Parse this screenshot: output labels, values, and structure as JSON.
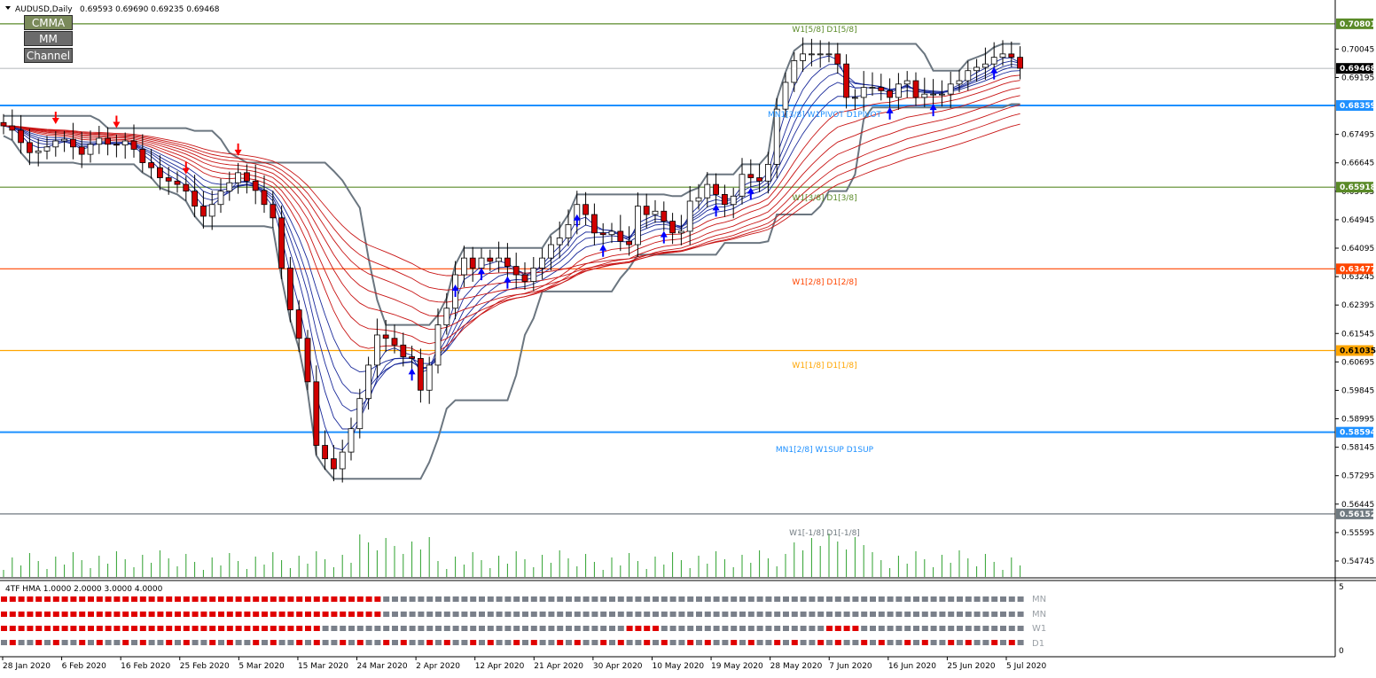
{
  "header": {
    "symbol_label": "AUDUSD,Daily",
    "ohlc": "0.69593 0.69690 0.69235 0.69468"
  },
  "buttons": {
    "cmma": "CMMA",
    "mm": "MM",
    "channel": "Channel"
  },
  "price_axis": {
    "ticks": [
      "0.70045",
      "0.69195",
      "0.67495",
      "0.66645",
      "0.65795",
      "0.64945",
      "0.64095",
      "0.63245",
      "0.62395",
      "0.61545",
      "0.60695",
      "0.59845",
      "0.58995",
      "0.58145",
      "0.57295",
      "0.56445",
      "0.55595",
      "0.54745"
    ],
    "labels": [
      {
        "text": "0.70801",
        "bg": "#5a8a28",
        "fg": "#ffffff"
      },
      {
        "text": "0.69468",
        "bg": "#000000",
        "fg": "#ffffff"
      },
      {
        "text": "0.68359",
        "bg": "#1e90ff",
        "fg": "#ffffff"
      },
      {
        "text": "0.65918",
        "bg": "#5a8a28",
        "fg": "#ffffff"
      },
      {
        "text": "0.63477",
        "bg": "#ff4500",
        "fg": "#ffffff"
      },
      {
        "text": "0.61035",
        "bg": "#ffa500",
        "fg": "#000000"
      },
      {
        "text": "0.58594",
        "bg": "#1e90ff",
        "fg": "#ffffff"
      },
      {
        "text": "0.56152",
        "bg": "#707a80",
        "fg": "#ffffff"
      }
    ]
  },
  "levels": {
    "w1_5_8": "W1[5/8] D1[5/8]",
    "pivot": "MN1[3/8] W1PIVOT D1PIVOT",
    "w1_3_8": "W1[3/8] D1[3/8]",
    "w1_2_8": "W1[2/8] D1[2/8]",
    "w1_1_8": "W1[1/8] D1[1/8]",
    "sup": "MN1[2/8] W1SUP D1SUP",
    "w1_m1_8": "W1[-1/8] D1[-1/8]"
  },
  "indicator": {
    "title": "4TF HMA 1.0000 2.0000 3.0000 4.0000",
    "row_labels": [
      "MN",
      "MN",
      "W1",
      "D1"
    ],
    "scale_top": "5",
    "scale_bottom": "0"
  },
  "time_axis": [
    "28 Jan 2020",
    "6 Feb 2020",
    "16 Feb 2020",
    "25 Feb 2020",
    "5 Mar 2020",
    "15 Mar 2020",
    "24 Mar 2020",
    "2 Apr 2020",
    "12 Apr 2020",
    "21 Apr 2020",
    "30 Apr 2020",
    "10 May 2020",
    "19 May 2020",
    "28 May 2020",
    "7 Jun 2020",
    "16 Jun 2020",
    "25 Jun 2020",
    "5 Jul 2020"
  ],
  "colors": {
    "bull": "#ffffff",
    "bear": "#d00000",
    "signal_up": "#0000ff",
    "signal_down": "#ff0000",
    "hma_on": "#e00000",
    "hma_off": "#7a808a",
    "volume": "#2ea02e"
  },
  "chart_data": {
    "type": "candlestick",
    "x": [
      "2020-01-28",
      "2020-01-29",
      "2020-01-30",
      "2020-01-31",
      "2020-02-03",
      "2020-02-04",
      "2020-02-05",
      "2020-02-06",
      "2020-02-07",
      "2020-02-10",
      "2020-02-11",
      "2020-02-12",
      "2020-02-13",
      "2020-02-14",
      "2020-02-17",
      "2020-02-18",
      "2020-02-19",
      "2020-02-20",
      "2020-02-21",
      "2020-02-24",
      "2020-02-25",
      "2020-02-26",
      "2020-02-27",
      "2020-02-28",
      "2020-03-02",
      "2020-03-03",
      "2020-03-04",
      "2020-03-05",
      "2020-03-06",
      "2020-03-09",
      "2020-03-10",
      "2020-03-11",
      "2020-03-12",
      "2020-03-13",
      "2020-03-16",
      "2020-03-17",
      "2020-03-18",
      "2020-03-19",
      "2020-03-20",
      "2020-03-23",
      "2020-03-24",
      "2020-03-25",
      "2020-03-26",
      "2020-03-27",
      "2020-03-30",
      "2020-03-31",
      "2020-04-01",
      "2020-04-02",
      "2020-04-03",
      "2020-04-06",
      "2020-04-07",
      "2020-04-08",
      "2020-04-09",
      "2020-04-10",
      "2020-04-13",
      "2020-04-14",
      "2020-04-15",
      "2020-04-16",
      "2020-04-17",
      "2020-04-20",
      "2020-04-21",
      "2020-04-22",
      "2020-04-23",
      "2020-04-24",
      "2020-04-27",
      "2020-04-28",
      "2020-04-29",
      "2020-04-30",
      "2020-05-01",
      "2020-05-04",
      "2020-05-05",
      "2020-05-06",
      "2020-05-07",
      "2020-05-08",
      "2020-05-11",
      "2020-05-12",
      "2020-05-13",
      "2020-05-14",
      "2020-05-15",
      "2020-05-18",
      "2020-05-19",
      "2020-05-20",
      "2020-05-21",
      "2020-05-22",
      "2020-05-25",
      "2020-05-26",
      "2020-05-27",
      "2020-05-28",
      "2020-05-29",
      "2020-06-01",
      "2020-06-02",
      "2020-06-03",
      "2020-06-04",
      "2020-06-05",
      "2020-06-08",
      "2020-06-09",
      "2020-06-10",
      "2020-06-11",
      "2020-06-12",
      "2020-06-15",
      "2020-06-16",
      "2020-06-17",
      "2020-06-18",
      "2020-06-19",
      "2020-06-22",
      "2020-06-23",
      "2020-06-24",
      "2020-06-25",
      "2020-06-26",
      "2020-06-29",
      "2020-06-30",
      "2020-07-01",
      "2020-07-02",
      "2020-07-03",
      "2020-07-06",
      "2020-07-07",
      "2020-07-08",
      "2020-07-09"
    ],
    "close": [
      0.6775,
      0.6762,
      0.6725,
      0.6695,
      0.67,
      0.6712,
      0.673,
      0.6735,
      0.6712,
      0.669,
      0.672,
      0.6738,
      0.672,
      0.6718,
      0.673,
      0.6705,
      0.6665,
      0.665,
      0.662,
      0.661,
      0.66,
      0.658,
      0.6535,
      0.6505,
      0.654,
      0.658,
      0.6605,
      0.6635,
      0.661,
      0.6582,
      0.654,
      0.65,
      0.635,
      0.6225,
      0.614,
      0.601,
      0.582,
      0.578,
      0.575,
      0.58,
      0.587,
      0.596,
      0.606,
      0.615,
      0.614,
      0.612,
      0.6085,
      0.608,
      0.5985,
      0.606,
      0.618,
      0.623,
      0.633,
      0.638,
      0.635,
      0.638,
      0.637,
      0.638,
      0.6355,
      0.633,
      0.631,
      0.635,
      0.638,
      0.642,
      0.644,
      0.648,
      0.654,
      0.651,
      0.6455,
      0.645,
      0.646,
      0.643,
      0.642,
      0.6535,
      0.651,
      0.652,
      0.649,
      0.6455,
      0.646,
      0.655,
      0.656,
      0.66,
      0.657,
      0.654,
      0.6565,
      0.663,
      0.662,
      0.661,
      0.666,
      0.6825,
      0.6905,
      0.697,
      0.699,
      0.699,
      0.699,
      0.699,
      0.696,
      0.686,
      0.686,
      0.689,
      0.689,
      0.688,
      0.686,
      0.69,
      0.691,
      0.686,
      0.687,
      0.687,
      0.687,
      0.69,
      0.691,
      0.694,
      0.695,
      0.696,
      0.698,
      0.699,
      0.698,
      0.6947
    ],
    "ylim": [
      0.544,
      0.713
    ],
    "volume_shown": true
  }
}
